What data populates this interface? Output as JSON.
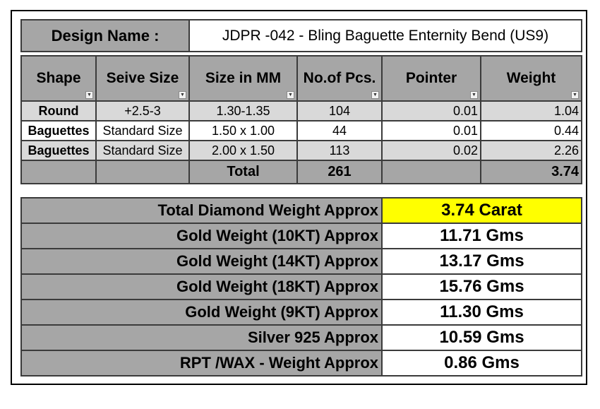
{
  "design": {
    "label": "Design Name :",
    "value": "JDPR -042 - Bling Baguette Enternity Bend (US9)"
  },
  "columns": [
    "Shape",
    "Seive Size",
    "Size in MM",
    "No.of Pcs.",
    "Pointer",
    "Weight"
  ],
  "rows": [
    {
      "shape": "Round",
      "seive": "+2.5-3",
      "size_mm": "1.30-1.35",
      "pcs": "104",
      "pointer": "0.01",
      "weight": "1.04"
    },
    {
      "shape": "Baguettes",
      "seive": "Standard Size",
      "size_mm": "1.50 x 1.00",
      "pcs": "44",
      "pointer": "0.01",
      "weight": "0.44"
    },
    {
      "shape": "Baguettes",
      "seive": "Standard Size",
      "size_mm": "2.00 x 1.50",
      "pcs": "113",
      "pointer": "0.02",
      "weight": "2.26"
    }
  ],
  "total": {
    "label": "Total",
    "pcs": "261",
    "weight": "3.74"
  },
  "summary": [
    {
      "label": "Total Diamond Weight Approx",
      "value": "3.74 Carat",
      "highlight": "#ffff00"
    },
    {
      "label": "Gold Weight (10KT) Approx",
      "value": "11.71 Gms"
    },
    {
      "label": "Gold Weight (14KT) Approx",
      "value": "13.17 Gms"
    },
    {
      "label": "Gold Weight (18KT) Approx",
      "value": "15.76 Gms"
    },
    {
      "label": "Gold Weight (9KT) Approx",
      "value": "11.30 Gms"
    },
    {
      "label": "Silver 925 Approx",
      "value": "10.59 Gms"
    },
    {
      "label": "RPT /WAX - Weight Approx",
      "value": "0.86 Gms"
    }
  ],
  "colors": {
    "header_gray": "#a6a6a6",
    "row_gray": "#d9d9d9",
    "highlight": "#ffff00"
  },
  "icons": {
    "filter": "filter-dropdown-arrow",
    "filter_active": "filter-funnel-icon"
  }
}
